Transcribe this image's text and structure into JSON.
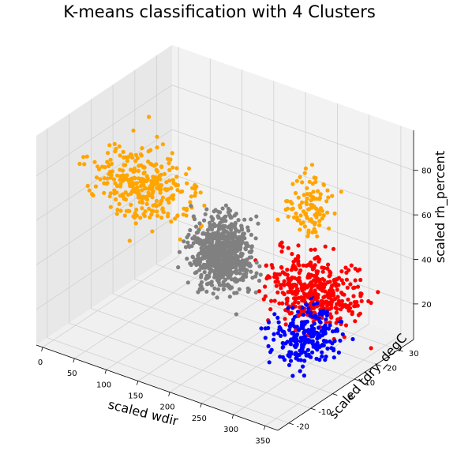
{
  "chart_data": {
    "type": "scatter3d",
    "title": "K-means classification with 4 Clusters",
    "xlabel": "scaled wdir",
    "ylabel": "scaled tdry_degC",
    "zlabel": "scaled rh_percent",
    "xlim": [
      -10,
      370
    ],
    "ylim": [
      -25,
      37
    ],
    "zlim": [
      4,
      98
    ],
    "x_ticks": [
      0,
      50,
      100,
      150,
      200,
      250,
      300,
      350
    ],
    "y_ticks": [
      -20,
      -10,
      0,
      10,
      20,
      30
    ],
    "z_ticks": [
      20,
      40,
      60,
      80
    ],
    "grid": true,
    "legend": "none",
    "clusters": [
      {
        "color": "#808080",
        "count": 700,
        "x_range": [
          130,
          260
        ],
        "y_range": [
          -8,
          18
        ],
        "z_range": [
          25,
          70
        ],
        "center": [
          190,
          2,
          48
        ]
      },
      {
        "color": "#FFA500",
        "count": 420,
        "x_range": [
          0,
          230
        ],
        "y_range": [
          -12,
          20
        ],
        "z_range": [
          45,
          95
        ],
        "center": [
          80,
          -2,
          70
        ],
        "secondary_group": {
          "x_range": [
            210,
            300
          ],
          "y_range": [
            10,
            30
          ],
          "z_range": [
            45,
            85
          ],
          "center": [
            260,
            22,
            62
          ]
        }
      },
      {
        "color": "#FF0000",
        "count": 420,
        "x_range": [
          150,
          360
        ],
        "y_range": [
          5,
          35
        ],
        "z_range": [
          10,
          55
        ],
        "center": [
          270,
          22,
          25
        ]
      },
      {
        "color": "#0000FF",
        "count": 240,
        "x_range": [
          240,
          360
        ],
        "y_range": [
          -5,
          30
        ],
        "z_range": [
          8,
          40
        ],
        "center": [
          300,
          8,
          18
        ]
      }
    ]
  }
}
